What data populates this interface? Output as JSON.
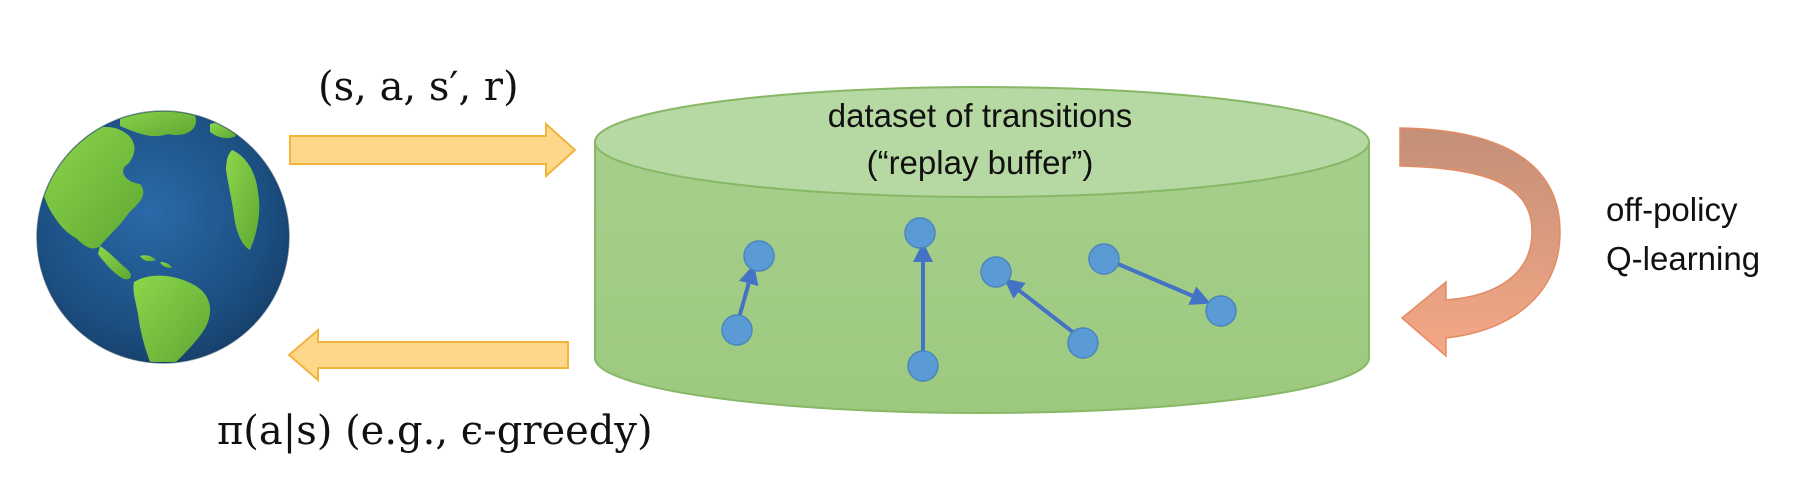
{
  "diagram": {
    "top_arrow_label": "(s, a, s′, r)",
    "bottom_arrow_label": "π(a|s) (e.g., ϵ-greedy)",
    "buffer_title_line1": "dataset of transitions",
    "buffer_title_line2": "(“replay buffer”)",
    "side_label_line1": "off-policy",
    "side_label_line2": "Q-learning",
    "icons": {
      "world": "globe-icon",
      "to_buffer": "arrow-right-icon",
      "to_world": "arrow-left-icon",
      "update": "curved-arrow-icon",
      "buffer": "cylinder-icon"
    },
    "colors": {
      "yellow_arrow": "#FDD78A",
      "yellow_arrow_stroke": "#F2B53C",
      "cylinder_fill": "#A9D18E",
      "cylinder_top": "#B5D7A0",
      "cylinder_stroke": "#7FAF5E",
      "node_fill": "#5B9BD5",
      "edge_color": "#4472C4",
      "curve_dark": "#C9917A",
      "curve_light": "#F4A582",
      "ocean": "#1F4E79",
      "land": "#7BC143"
    }
  }
}
